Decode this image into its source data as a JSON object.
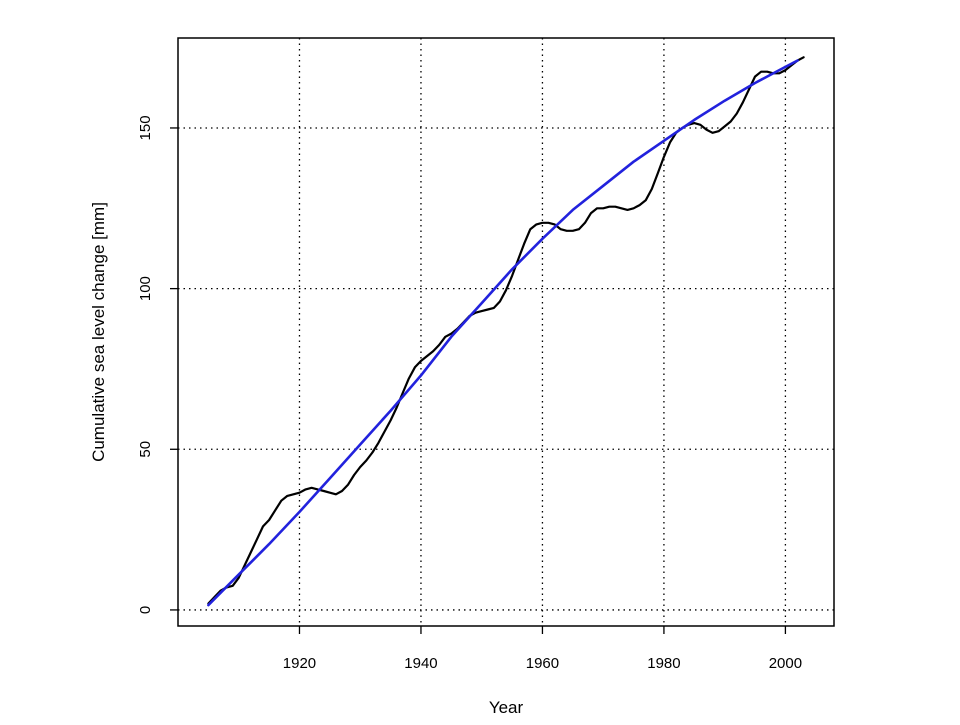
{
  "chart_data": {
    "type": "line",
    "title": "",
    "xlabel": "Year",
    "ylabel": "Cumulative sea level change [mm]",
    "xlim": [
      1900,
      2008
    ],
    "ylim": [
      -5,
      178
    ],
    "xticks": [
      1920,
      1940,
      1960,
      1980,
      2000
    ],
    "yticks": [
      0,
      50,
      100,
      150
    ],
    "grid": "dotted",
    "legend": "none",
    "series": [
      {
        "color": "#000000",
        "style": "solid",
        "points": [
          [
            1905,
            2
          ],
          [
            1906,
            4
          ],
          [
            1907,
            6
          ],
          [
            1908,
            7
          ],
          [
            1909,
            7.5
          ],
          [
            1910,
            10
          ],
          [
            1911,
            14
          ],
          [
            1912,
            18
          ],
          [
            1913,
            22
          ],
          [
            1914,
            26
          ],
          [
            1915,
            28
          ],
          [
            1916,
            31
          ],
          [
            1917,
            34
          ],
          [
            1918,
            35.5
          ],
          [
            1919,
            36
          ],
          [
            1920,
            36.5
          ],
          [
            1921,
            37.5
          ],
          [
            1922,
            38
          ],
          [
            1923,
            37.5
          ],
          [
            1924,
            37
          ],
          [
            1925,
            36.5
          ],
          [
            1926,
            36
          ],
          [
            1927,
            37
          ],
          [
            1928,
            39
          ],
          [
            1929,
            42
          ],
          [
            1930,
            44.5
          ],
          [
            1931,
            46.5
          ],
          [
            1932,
            49
          ],
          [
            1933,
            52
          ],
          [
            1934,
            55.5
          ],
          [
            1935,
            59
          ],
          [
            1936,
            63
          ],
          [
            1937,
            67.5
          ],
          [
            1938,
            72
          ],
          [
            1939,
            75.5
          ],
          [
            1940,
            77.5
          ],
          [
            1941,
            79
          ],
          [
            1942,
            80.5
          ],
          [
            1943,
            82.5
          ],
          [
            1944,
            85
          ],
          [
            1945,
            86
          ],
          [
            1946,
            87.5
          ],
          [
            1947,
            89.5
          ],
          [
            1948,
            91.5
          ],
          [
            1949,
            92.5
          ],
          [
            1950,
            93
          ],
          [
            1951,
            93.5
          ],
          [
            1952,
            94
          ],
          [
            1953,
            96
          ],
          [
            1954,
            99.5
          ],
          [
            1955,
            104
          ],
          [
            1956,
            109
          ],
          [
            1957,
            114
          ],
          [
            1958,
            118.5
          ],
          [
            1959,
            120
          ],
          [
            1960,
            120.5
          ],
          [
            1961,
            120.5
          ],
          [
            1962,
            120
          ],
          [
            1963,
            118.5
          ],
          [
            1964,
            118
          ],
          [
            1965,
            118
          ],
          [
            1966,
            118.5
          ],
          [
            1967,
            120.5
          ],
          [
            1968,
            123.5
          ],
          [
            1969,
            125
          ],
          [
            1970,
            125
          ],
          [
            1971,
            125.5
          ],
          [
            1972,
            125.5
          ],
          [
            1973,
            125
          ],
          [
            1974,
            124.5
          ],
          [
            1975,
            125
          ],
          [
            1976,
            126
          ],
          [
            1977,
            127.5
          ],
          [
            1978,
            131
          ],
          [
            1979,
            136
          ],
          [
            1980,
            141
          ],
          [
            1981,
            145.5
          ],
          [
            1982,
            148.5
          ],
          [
            1983,
            150
          ],
          [
            1984,
            151
          ],
          [
            1985,
            151.5
          ],
          [
            1986,
            151
          ],
          [
            1987,
            149.5
          ],
          [
            1988,
            148.5
          ],
          [
            1989,
            149
          ],
          [
            1990,
            150.5
          ],
          [
            1991,
            152
          ],
          [
            1992,
            154.5
          ],
          [
            1993,
            158
          ],
          [
            1994,
            162
          ],
          [
            1995,
            166
          ],
          [
            1996,
            167.5
          ],
          [
            1997,
            167.5
          ],
          [
            1998,
            167
          ],
          [
            1999,
            167
          ],
          [
            2000,
            168
          ],
          [
            2001,
            169.5
          ],
          [
            2002,
            171
          ],
          [
            2003,
            172
          ]
        ]
      },
      {
        "color": "#2222dd",
        "style": "solid",
        "points": [
          [
            1905,
            1.5
          ],
          [
            1910,
            11
          ],
          [
            1915,
            20.5
          ],
          [
            1920,
            30.5
          ],
          [
            1925,
            41
          ],
          [
            1930,
            51.5
          ],
          [
            1935,
            62
          ],
          [
            1940,
            73
          ],
          [
            1945,
            85
          ],
          [
            1950,
            95.5
          ],
          [
            1955,
            106
          ],
          [
            1960,
            115.5
          ],
          [
            1965,
            124.5
          ],
          [
            1970,
            132
          ],
          [
            1975,
            139.5
          ],
          [
            1980,
            146
          ],
          [
            1985,
            152.5
          ],
          [
            1990,
            158.5
          ],
          [
            1995,
            164
          ],
          [
            2000,
            169
          ],
          [
            2002,
            171
          ]
        ]
      }
    ]
  }
}
